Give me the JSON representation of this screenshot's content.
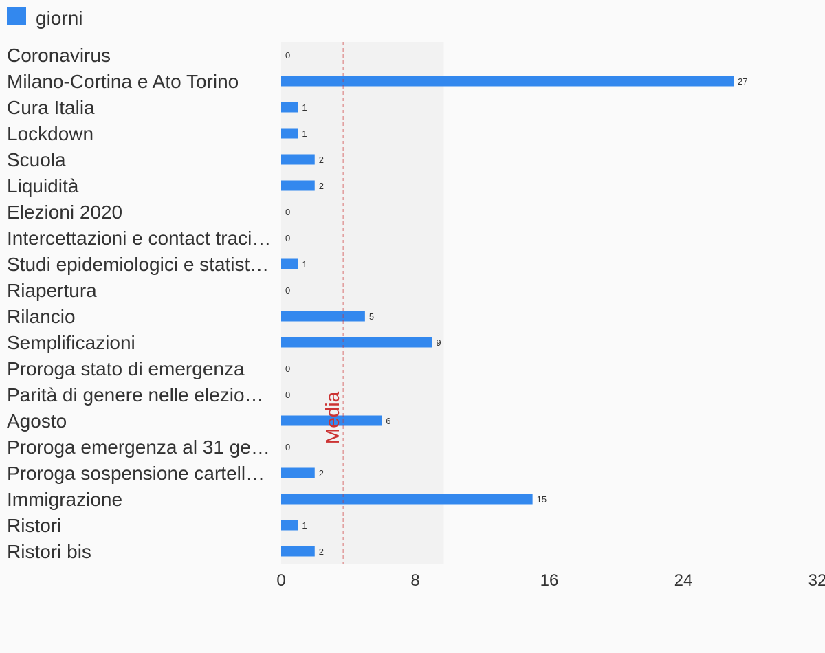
{
  "chart_data": {
    "type": "bar",
    "orientation": "horizontal",
    "legend": {
      "position": "top-left",
      "entries": [
        "giorni"
      ]
    },
    "series": [
      {
        "name": "giorni",
        "color": "#3388ee",
        "values": [
          0,
          27,
          1,
          1,
          2,
          2,
          0,
          0,
          1,
          0,
          5,
          9,
          0,
          0,
          6,
          0,
          2,
          15,
          1,
          2
        ]
      }
    ],
    "categories": [
      "Coronavirus",
      "Milano-Cortina e Ato Torino",
      "Cura Italia",
      "Lockdown",
      "Scuola",
      "Liquidità",
      "Elezioni 2020",
      "Intercettazioni e contact traci…",
      "Studi epidemiologici e statist…",
      "Riapertura",
      "Rilancio",
      "Semplificazioni",
      "Proroga stato di emergenza",
      "Parità di genere nelle elezio…",
      "Agosto",
      "Proroga emergenza al 31 ge…",
      "Proroga sospensione cartell…",
      "Immigrazione",
      "Ristori",
      "Ristori bis"
    ],
    "x_ticks": [
      "0",
      "8",
      "16",
      "24",
      "32"
    ],
    "xlim": [
      0,
      32
    ],
    "reference_line": {
      "label": "Media",
      "value": 3.7,
      "color": "#cc3333"
    },
    "shaded_band": {
      "from": 0,
      "to": 9.7,
      "color": "#f0f0f0"
    },
    "grid": false
  }
}
